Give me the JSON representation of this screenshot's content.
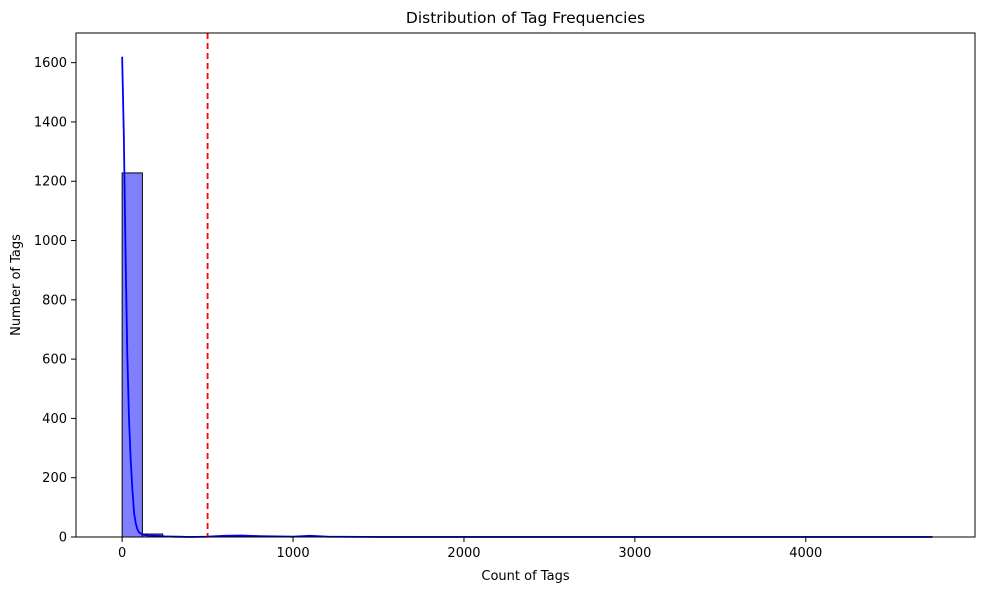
{
  "chart_data": {
    "type": "bar",
    "title": "Distribution of Tag Frequencies",
    "xlabel": "Count of Tags",
    "ylabel": "Number of Tags",
    "xlim": [
      -270,
      4990
    ],
    "ylim": [
      0,
      1700
    ],
    "xticks": [
      0,
      1000,
      2000,
      3000,
      4000
    ],
    "yticks": [
      0,
      200,
      400,
      600,
      800,
      1000,
      1200,
      1400,
      1600
    ],
    "grid": false,
    "histogram": {
      "bin_start": 0,
      "bin_width": 118.5,
      "counts": [
        1228,
        10,
        2,
        1,
        1,
        1,
        1,
        1,
        1,
        1,
        1,
        1,
        1,
        1,
        1,
        1,
        1,
        1,
        1,
        1,
        1,
        1,
        1,
        1,
        1,
        1,
        1,
        1,
        1,
        1,
        1,
        1,
        1,
        1,
        1,
        1,
        1,
        1,
        1,
        1
      ],
      "bar_color": "#8080ff",
      "edge_color": "#000000"
    },
    "kde": {
      "color": "#0000ff",
      "x": [
        0,
        10,
        20,
        30,
        40,
        50,
        60,
        70,
        80,
        90,
        100,
        120,
        150,
        200,
        250,
        300,
        400,
        500,
        600,
        700,
        800,
        900,
        1000,
        1100,
        1200,
        1500,
        2000,
        3000,
        4000,
        4740
      ],
      "y": [
        1620,
        1350,
        950,
        620,
        400,
        260,
        160,
        80,
        45,
        25,
        15,
        8,
        5,
        4,
        2,
        1,
        0,
        1,
        4,
        5,
        3,
        2,
        1,
        4,
        1,
        0,
        0,
        0,
        0,
        0
      ]
    },
    "vline": {
      "x": 500,
      "color": "#ff0000",
      "style": "dashed"
    }
  }
}
